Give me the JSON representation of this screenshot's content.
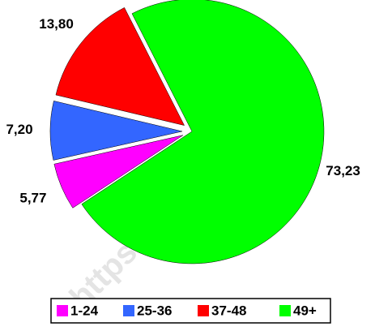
{
  "chart_data": {
    "type": "pie",
    "categories": [
      "1-24",
      "25-36",
      "37-48",
      "49+"
    ],
    "values": [
      5.77,
      7.2,
      13.8,
      73.23
    ],
    "value_labels": [
      "5,77",
      "7,20",
      "13,80",
      "73,23"
    ],
    "colors": [
      "#ff00ff",
      "#3366ff",
      "#ff0000",
      "#00ff00"
    ],
    "watermark": "https://www.bps.go",
    "legend": "bottom"
  }
}
